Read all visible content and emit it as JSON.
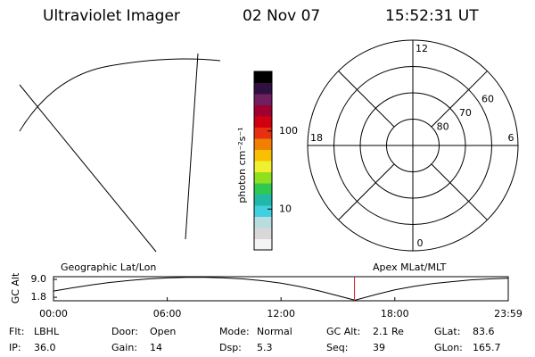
{
  "header": {
    "title": "Ultraviolet Imager",
    "date": "02 Nov 07",
    "time": "15:52:31 UT"
  },
  "chart_data": [
    {
      "type": "colorbar",
      "label": "photon cm⁻²s⁻¹",
      "log_scale": true,
      "ylim": [
        3,
        580
      ],
      "yticks": [
        10,
        100
      ],
      "colors": [
        "#f4f4f4",
        "#d8d8d8",
        "#b8dde0",
        "#40d0e0",
        "#20b8a8",
        "#30c850",
        "#90e020",
        "#f0f030",
        "#f8c000",
        "#f08000",
        "#e83010",
        "#d00010",
        "#a00030",
        "#702060",
        "#301040",
        "#000000"
      ]
    },
    {
      "type": "polar",
      "rlim": [
        90,
        50
      ],
      "rticks": [
        80,
        70,
        60
      ],
      "theta_ticks": [
        12,
        18,
        6,
        0
      ]
    },
    {
      "type": "line",
      "ylabel": "GC Alt",
      "annotations": [
        "Geographic Lat/Lon",
        "Apex MLat/MLT"
      ],
      "x": [
        0,
        1,
        2,
        3,
        4,
        5,
        6,
        7,
        8,
        9,
        10,
        11,
        12,
        13,
        14,
        15,
        15.9,
        17,
        18,
        19,
        20,
        21,
        22,
        23,
        23.983
      ],
      "values": [
        4.3,
        5.6,
        6.8,
        7.8,
        8.6,
        9.2,
        9.6,
        9.8,
        9.8,
        9.6,
        9.2,
        8.5,
        7.5,
        6.1,
        4.4,
        2.4,
        0.6,
        2.9,
        4.8,
        6.2,
        7.3,
        8.1,
        8.8,
        9.2,
        9.5
      ],
      "color": "#000000",
      "marker_x": 15.875,
      "marker_color": "#cc2020",
      "xlim": [
        0,
        23.983
      ],
      "xticks": [
        {
          "value": 0,
          "label": "00:00"
        },
        {
          "value": 6,
          "label": "06:00"
        },
        {
          "value": 12,
          "label": "12:00"
        },
        {
          "value": 18,
          "label": "18:00"
        },
        {
          "value": 23.983,
          "label": "23:59"
        }
      ],
      "ylim": [
        0.4,
        10.1
      ],
      "yticks": [
        {
          "value": 9,
          "label": "9.0"
        },
        {
          "value": 1.8,
          "label": "1.8"
        }
      ]
    }
  ],
  "info": [
    [
      {
        "label": "Flt:",
        "value": "LBHL"
      },
      {
        "label": "Door:",
        "value": "Open"
      },
      {
        "label": "Mode:",
        "value": "Normal"
      },
      {
        "label": "GC Alt:",
        "value": "2.1 Re"
      },
      {
        "label": "GLat:",
        "value": "83.6"
      }
    ],
    [
      {
        "label": "IP:",
        "value": "36.0"
      },
      {
        "label": "Gain:",
        "value": "14"
      },
      {
        "label": "Dsp:",
        "value": "5.3"
      },
      {
        "label": "Seq:",
        "value": "39"
      },
      {
        "label": "GLon:",
        "value": "165.7"
      }
    ]
  ]
}
